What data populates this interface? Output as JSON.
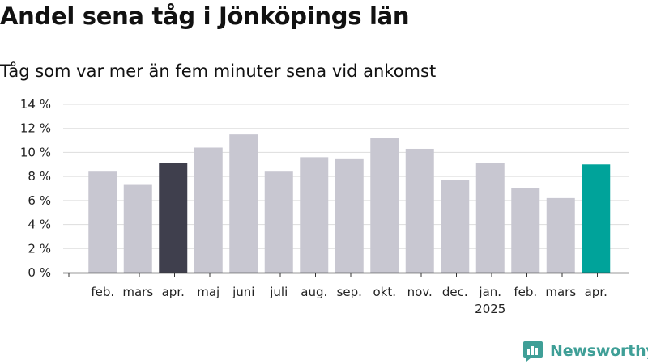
{
  "title": "Andel sena tåg i Jönköpings län",
  "subtitle": "Tåg som var mer än fem minuter sena vid ankomst",
  "brand": "Newsworthy",
  "colors": {
    "bar_default": "#c8c7d1",
    "bar_highlight_dark": "#3f3f4d",
    "bar_highlight_latest": "#00a39a",
    "grid": "#dddddd",
    "axis": "#333333",
    "brand": "#3f9f97"
  },
  "chart_data": {
    "type": "bar",
    "categories": [
      "feb.",
      "mars",
      "apr.",
      "maj",
      "juni",
      "juli",
      "aug.",
      "sep.",
      "okt.",
      "nov.",
      "dec.",
      "jan.",
      "feb.",
      "mars",
      "apr."
    ],
    "year_labels": [
      "",
      "",
      "",
      "",
      "",
      "",
      "",
      "",
      "",
      "",
      "",
      "2025",
      "",
      "",
      ""
    ],
    "values": [
      8.4,
      7.3,
      9.1,
      10.4,
      11.5,
      8.4,
      9.6,
      9.5,
      11.2,
      10.3,
      7.7,
      9.1,
      7.0,
      6.2,
      9.0
    ],
    "highlight": [
      "default",
      "default",
      "dark",
      "default",
      "default",
      "default",
      "default",
      "default",
      "default",
      "default",
      "default",
      "default",
      "default",
      "default",
      "latest"
    ],
    "ylim": [
      0,
      14
    ],
    "yticks": [
      0,
      2,
      4,
      6,
      8,
      10,
      12,
      14
    ],
    "ytick_labels": [
      "0 %",
      "2 %",
      "4 %",
      "6 %",
      "8 %",
      "10 %",
      "12 %",
      "14 %"
    ],
    "grid": true,
    "xlabel": "",
    "ylabel": ""
  }
}
